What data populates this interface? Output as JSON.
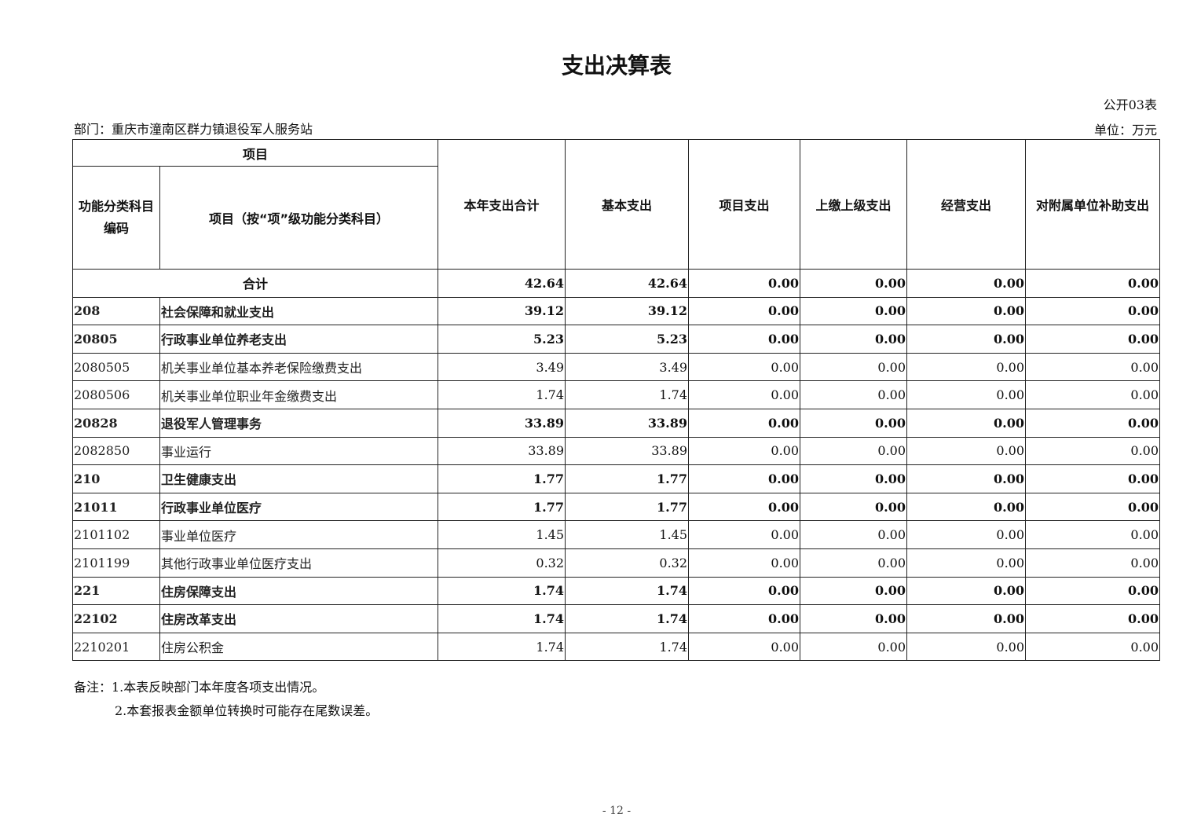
{
  "title": "支出决算表",
  "table_no": "公开03表",
  "department": "部门：重庆市潼南区群力镇退役军人服务站",
  "unit": "单位：万元",
  "headers": {
    "item": "项目",
    "code": "功能分类科目编码",
    "name": "项目（按“项”级功能分类科目）",
    "cols": [
      "本年支出合计",
      "基本支出",
      "项目支出",
      "上缴上级支出",
      "经营支出",
      "对附属单位补助支出"
    ]
  },
  "total": {
    "label": "合计",
    "values": [
      "42.64",
      "42.64",
      "0.00",
      "0.00",
      "0.00",
      "0.00"
    ]
  },
  "rows": [
    {
      "code": "208",
      "name": "社会保障和就业支出",
      "bold": true,
      "values": [
        "39.12",
        "39.12",
        "0.00",
        "0.00",
        "0.00",
        "0.00"
      ]
    },
    {
      "code": "20805",
      "name": "行政事业单位养老支出",
      "bold": true,
      "values": [
        "5.23",
        "5.23",
        "0.00",
        "0.00",
        "0.00",
        "0.00"
      ]
    },
    {
      "code": "2080505",
      "name": "机关事业单位基本养老保险缴费支出",
      "bold": false,
      "values": [
        "3.49",
        "3.49",
        "0.00",
        "0.00",
        "0.00",
        "0.00"
      ]
    },
    {
      "code": "2080506",
      "name": "机关事业单位职业年金缴费支出",
      "bold": false,
      "values": [
        "1.74",
        "1.74",
        "0.00",
        "0.00",
        "0.00",
        "0.00"
      ]
    },
    {
      "code": "20828",
      "name": "退役军人管理事务",
      "bold": true,
      "values": [
        "33.89",
        "33.89",
        "0.00",
        "0.00",
        "0.00",
        "0.00"
      ]
    },
    {
      "code": "2082850",
      "name": "事业运行",
      "bold": false,
      "values": [
        "33.89",
        "33.89",
        "0.00",
        "0.00",
        "0.00",
        "0.00"
      ]
    },
    {
      "code": "210",
      "name": "卫生健康支出",
      "bold": true,
      "values": [
        "1.77",
        "1.77",
        "0.00",
        "0.00",
        "0.00",
        "0.00"
      ]
    },
    {
      "code": "21011",
      "name": "行政事业单位医疗",
      "bold": true,
      "values": [
        "1.77",
        "1.77",
        "0.00",
        "0.00",
        "0.00",
        "0.00"
      ]
    },
    {
      "code": "2101102",
      "name": "事业单位医疗",
      "bold": false,
      "values": [
        "1.45",
        "1.45",
        "0.00",
        "0.00",
        "0.00",
        "0.00"
      ]
    },
    {
      "code": "2101199",
      "name": "其他行政事业单位医疗支出",
      "bold": false,
      "values": [
        "0.32",
        "0.32",
        "0.00",
        "0.00",
        "0.00",
        "0.00"
      ]
    },
    {
      "code": "221",
      "name": "住房保障支出",
      "bold": true,
      "values": [
        "1.74",
        "1.74",
        "0.00",
        "0.00",
        "0.00",
        "0.00"
      ]
    },
    {
      "code": "22102",
      "name": "住房改革支出",
      "bold": true,
      "values": [
        "1.74",
        "1.74",
        "0.00",
        "0.00",
        "0.00",
        "0.00"
      ]
    },
    {
      "code": "2210201",
      "name": "住房公积金",
      "bold": false,
      "values": [
        "1.74",
        "1.74",
        "0.00",
        "0.00",
        "0.00",
        "0.00"
      ]
    }
  ],
  "notes": [
    "备注：1.本表反映部门本年度各项支出情况。",
    "2.本套报表金额单位转换时可能存在尾数误差。"
  ],
  "page_number": "- 12 -"
}
